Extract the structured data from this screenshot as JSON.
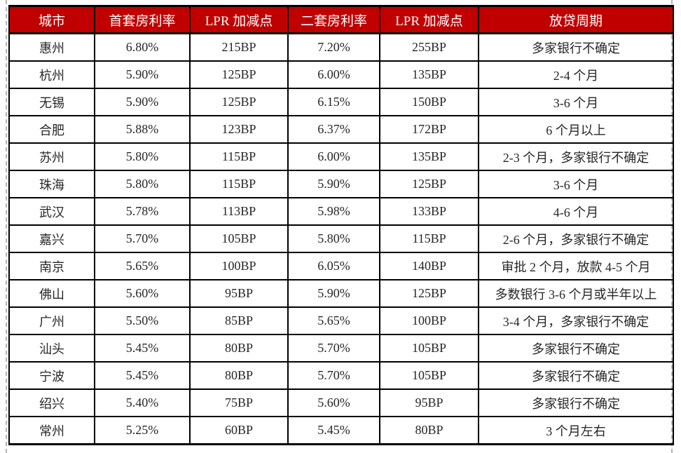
{
  "colors": {
    "header_bg": "#c00000",
    "header_text": "#ffffff",
    "grid": "#000000",
    "body_text": "#262626",
    "boundary_dash": "#b5b5b5"
  },
  "table": {
    "columns": [
      "城市",
      "首套房利率",
      "LPR 加减点",
      "二套房利率",
      "LPR 加减点",
      "放贷周期"
    ],
    "rows": [
      [
        "惠州",
        "6.80%",
        "215BP",
        "7.20%",
        "255BP",
        "多家银行不确定"
      ],
      [
        "杭州",
        "5.90%",
        "125BP",
        "6.00%",
        "135BP",
        "2-4 个月"
      ],
      [
        "无锡",
        "5.90%",
        "125BP",
        "6.15%",
        "150BP",
        "3-6 个月"
      ],
      [
        "合肥",
        "5.88%",
        "123BP",
        "6.37%",
        "172BP",
        "6 个月以上"
      ],
      [
        "苏州",
        "5.80%",
        "115BP",
        "6.00%",
        "135BP",
        "2-3 个月，多家银行不确定"
      ],
      [
        "珠海",
        "5.80%",
        "115BP",
        "5.90%",
        "125BP",
        "3-6 个月"
      ],
      [
        "武汉",
        "5.78%",
        "113BP",
        "5.98%",
        "133BP",
        "4-6 个月"
      ],
      [
        "嘉兴",
        "5.70%",
        "105BP",
        "5.80%",
        "115BP",
        "2-6 个月，多家银行不确定"
      ],
      [
        "南京",
        "5.65%",
        "100BP",
        "6.05%",
        "140BP",
        "审批 2 个月，放款 4-5 个月"
      ],
      [
        "佛山",
        "5.60%",
        "95BP",
        "5.90%",
        "125BP",
        "多数银行 3-6 个月或半年以上"
      ],
      [
        "广州",
        "5.50%",
        "85BP",
        "5.65%",
        "100BP",
        "3-4 个月，多家银行不确定"
      ],
      [
        "汕头",
        "5.45%",
        "80BP",
        "5.70%",
        "105BP",
        "多家银行不确定"
      ],
      [
        "宁波",
        "5.45%",
        "80BP",
        "5.70%",
        "105BP",
        "多家银行不确定"
      ],
      [
        "绍兴",
        "5.40%",
        "75BP",
        "5.60%",
        "95BP",
        "多家银行不确定"
      ],
      [
        "常州",
        "5.25%",
        "60BP",
        "5.45%",
        "80BP",
        "3 个月左右"
      ]
    ]
  }
}
